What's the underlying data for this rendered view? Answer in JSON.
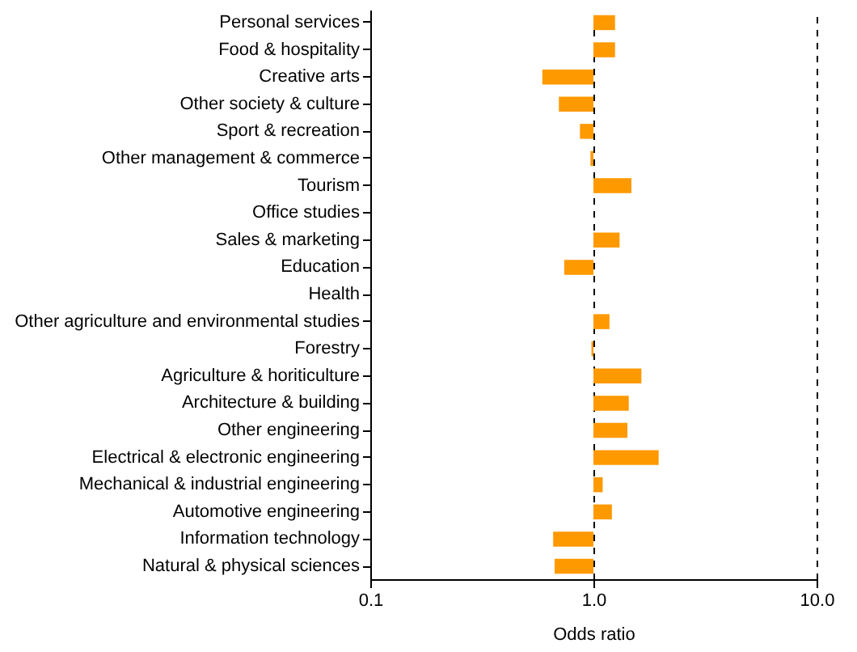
{
  "chart_data": {
    "type": "bar",
    "orientation": "horizontal",
    "log": "x",
    "xlabel": "Odds ratio",
    "categories": [
      "Personal services",
      "Food & hospitality",
      "Creative arts",
      "Other society & culture",
      "Sport & recreation",
      "Other management & commerce",
      "Tourism",
      "Office studies",
      "Sales & marketing",
      "Education",
      "Health",
      "Other agriculture and environmental studies",
      "Forestry",
      "Agriculture & horiticulture",
      "Architecture & building",
      "Other engineering",
      "Electrical & electronic engineering",
      "Mechanical & industrial engineering",
      "Automotive engineering",
      "Information technology",
      "Natural & physical sciences"
    ],
    "base": [
      1,
      1,
      1,
      1,
      1,
      1,
      1,
      null,
      1,
      1,
      null,
      1,
      1,
      1,
      1,
      1,
      1,
      1,
      1,
      1,
      1
    ],
    "values": [
      0.25,
      0.25,
      -0.41,
      -0.3,
      -0.13,
      -0.03,
      0.48,
      null,
      0.31,
      -0.26,
      null,
      0.18,
      -0.02,
      0.64,
      0.44,
      0.42,
      0.96,
      0.1,
      0.21,
      -0.34,
      -0.33
    ],
    "color": "#ff9900",
    "xlim": [
      0.1,
      10
    ],
    "xticks": [
      {
        "value": 0.1,
        "label": "0.1"
      },
      {
        "value": 1,
        "label": "1.0"
      },
      {
        "value": 10,
        "label": "10.0"
      }
    ],
    "grid": "x"
  }
}
